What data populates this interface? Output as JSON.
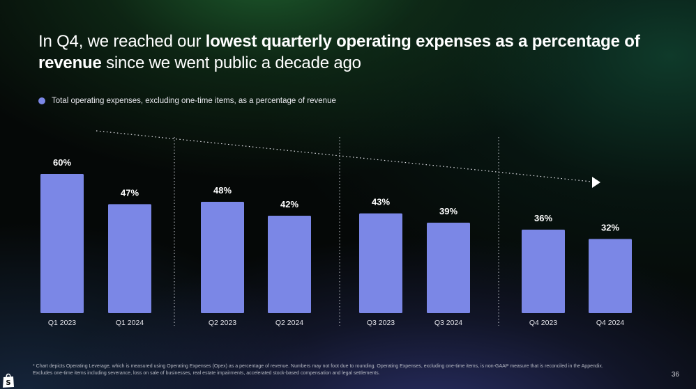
{
  "headline": {
    "part1": "In Q4, we reached our ",
    "bold1": "lowest quarterly operating expenses as a percentage of revenue",
    "part2": " since we went public a decade ago"
  },
  "page_number": "36",
  "footnote": {
    "line1": "* Chart depicts Operating Leverage, which is measured using Operating Expenses (Opex) as a percentage of revenue. Numbers may not foot due to rounding. Operating Expenses, excluding one-time items, is non-GAAP measure that is reconciled in the Appendix.",
    "line2": "Excludes one-time items including severance, loss on sale of businesses, real estate impairments, accelerated stock-based compensation and legal settlements."
  },
  "colors": {
    "bar": "#7b87e6",
    "legend_dot": "#7b87e6",
    "divider": "#c9cbd3",
    "trend_arrow": "#e6e6ec"
  },
  "icons": {
    "logo": "shopping-bag-logo-icon",
    "trend": "dotted-trend-arrow-icon"
  },
  "chart_data": {
    "type": "bar",
    "legend": [
      "Total operating expenses, excluding one-time items, as a percentage of revenue"
    ],
    "legend_position": "top-left",
    "categories": [
      "Q1 2023",
      "Q1 2024",
      "Q2 2023",
      "Q2 2024",
      "Q3 2023",
      "Q3 2024",
      "Q4 2023",
      "Q4 2024"
    ],
    "series": [
      {
        "name": "Total operating expenses, excluding one-time items, as a percentage of revenue",
        "values": [
          60,
          47,
          48,
          42,
          43,
          39,
          36,
          32
        ]
      }
    ],
    "data_labels": [
      "60%",
      "47%",
      "48%",
      "42%",
      "43%",
      "39%",
      "36%",
      "32%"
    ],
    "groups": [
      "Q1",
      "Q2",
      "Q3",
      "Q4"
    ],
    "ylim": [
      0,
      60
    ],
    "y_axis_visible": false,
    "grid": false,
    "annotation": "dotted downward trend arrow"
  }
}
